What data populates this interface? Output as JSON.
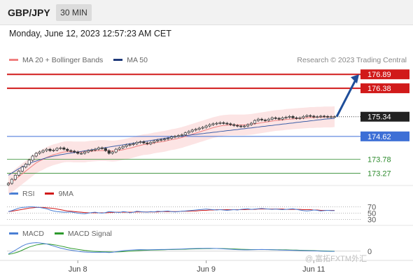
{
  "header": {
    "symbol": "GBP/JPY",
    "timeframe": "30 MIN",
    "datetime": "Monday, June 12, 2023 12:57:23 AM CET"
  },
  "legend": {
    "main": [
      {
        "label": "MA 20 + Bollinger Bands",
        "color": "#f08080"
      },
      {
        "label": "MA 50",
        "color": "#1f3a7a"
      }
    ],
    "credit": "Research © 2023 Trading Central",
    "rsi": [
      {
        "label": "RSI",
        "color": "#4a7fd4"
      },
      {
        "label": "9MA",
        "color": "#d11a1a"
      }
    ],
    "macd": [
      {
        "label": "MACD",
        "color": "#4a7fd4"
      },
      {
        "label": "MACD Signal",
        "color": "#2e9a2e"
      }
    ]
  },
  "watermark": "@ 富拓FXTM外汇",
  "chart_data": {
    "type": "line",
    "price_range": [
      172.9,
      177.1
    ],
    "levels": [
      {
        "label": "176.89",
        "value": 176.89,
        "kind": "resistance",
        "color": "#d11a1a"
      },
      {
        "label": "176.38",
        "value": 176.38,
        "kind": "resistance",
        "color": "#d11a1a"
      },
      {
        "label": "175.34",
        "value": 175.34,
        "kind": "last",
        "color": "#222222"
      },
      {
        "label": "174.62",
        "value": 174.62,
        "kind": "pivot",
        "color": "#3d6fd6"
      },
      {
        "label": "173.78",
        "value": 173.78,
        "kind": "support",
        "color": "#2e8b2e"
      },
      {
        "label": "173.27",
        "value": 173.27,
        "kind": "support",
        "color": "#2e8b2e"
      }
    ],
    "x_ticks": [
      "Jun 8",
      "Jun 9",
      "Jun 11"
    ],
    "x_tick_index": [
      20,
      57,
      88
    ],
    "bar_count": 95,
    "close": [
      172.9,
      173.05,
      173.2,
      173.35,
      173.5,
      173.6,
      173.75,
      173.9,
      174.0,
      174.05,
      174.1,
      174.15,
      174.1,
      174.12,
      174.18,
      174.2,
      174.15,
      174.1,
      174.08,
      174.05,
      174.0,
      174.0,
      174.05,
      174.1,
      174.12,
      174.15,
      174.2,
      174.18,
      174.1,
      174.0,
      174.05,
      174.15,
      174.2,
      174.25,
      174.3,
      174.32,
      174.35,
      174.4,
      174.42,
      174.38,
      174.35,
      174.4,
      174.45,
      174.48,
      174.5,
      174.52,
      174.55,
      174.6,
      174.62,
      174.65,
      174.68,
      174.75,
      174.8,
      174.85,
      174.88,
      174.92,
      174.95,
      175.0,
      175.05,
      175.08,
      175.1,
      175.12,
      175.1,
      175.08,
      175.05,
      175.02,
      175.0,
      174.98,
      175.0,
      175.05,
      175.1,
      175.2,
      175.25,
      175.22,
      175.2,
      175.25,
      175.3,
      175.28,
      175.25,
      175.3,
      175.32,
      175.35,
      175.3,
      175.28,
      175.3,
      175.35,
      175.38,
      175.36,
      175.33,
      175.34,
      175.36,
      175.35,
      175.33,
      175.34,
      175.34
    ],
    "ma20": [
      172.9,
      172.95,
      173.05,
      173.15,
      173.25,
      173.35,
      173.45,
      173.55,
      173.65,
      173.72,
      173.78,
      173.85,
      173.9,
      173.95,
      173.98,
      174.02,
      174.05,
      174.06,
      174.06,
      174.05,
      174.05,
      174.05,
      174.05,
      174.07,
      174.08,
      174.09,
      174.1,
      174.1,
      174.1,
      174.09,
      174.08,
      174.09,
      174.11,
      174.13,
      174.16,
      174.19,
      174.22,
      174.26,
      174.29,
      174.32,
      174.33,
      174.35,
      174.38,
      174.4,
      174.42,
      174.44,
      174.47,
      174.5,
      174.52,
      174.55,
      174.58,
      174.62,
      174.66,
      174.7,
      174.74,
      174.78,
      174.82,
      174.86,
      174.9,
      174.94,
      174.97,
      175.0,
      175.02,
      175.03,
      175.04,
      175.04,
      175.04,
      175.04,
      175.04,
      175.05,
      175.06,
      175.08,
      175.1,
      175.12,
      175.14,
      175.16,
      175.18,
      175.2,
      175.21,
      175.22,
      175.24,
      175.25,
      175.26,
      175.27,
      175.28,
      175.29,
      175.3,
      175.31,
      175.31,
      175.32,
      175.32,
      175.33,
      175.33,
      175.33,
      175.34
    ],
    "ma50": [
      173.2,
      173.28,
      173.36,
      173.44,
      173.5,
      173.56,
      173.62,
      173.68,
      173.72,
      173.76,
      173.8,
      173.84,
      173.87,
      173.9,
      173.92,
      173.95,
      173.97,
      173.99,
      174.01,
      174.03,
      174.05,
      174.07,
      174.09,
      174.11,
      174.13,
      174.15,
      174.17,
      174.19,
      174.21,
      174.23,
      174.25,
      174.27,
      174.29,
      174.31,
      174.33,
      174.35,
      174.37,
      174.39,
      174.41,
      174.43,
      174.45,
      174.47,
      174.49,
      174.51,
      174.53,
      174.55,
      174.57,
      174.59,
      174.6,
      174.62,
      174.63,
      174.65,
      174.66,
      174.68,
      174.69,
      174.71,
      174.72,
      174.74,
      174.75,
      174.77,
      174.78,
      174.8,
      174.81,
      174.83,
      174.84,
      174.86,
      174.87,
      174.89,
      174.9,
      174.92,
      174.93,
      174.95,
      174.96,
      174.98,
      174.99,
      175.01,
      175.02,
      175.04,
      175.05,
      175.07,
      175.08,
      175.1,
      175.11,
      175.13,
      175.14,
      175.16,
      175.17,
      175.19,
      175.2,
      175.22,
      175.23,
      175.25,
      175.26,
      175.27,
      175.28
    ],
    "forecast_arrow": {
      "from": 175.34,
      "to": 176.89
    },
    "rsi": {
      "levels": [
        70,
        50,
        30
      ],
      "range": [
        20,
        80
      ],
      "rsi": [
        55,
        58,
        62,
        66,
        68,
        69,
        70,
        70,
        69,
        68,
        66,
        64,
        60,
        57,
        55,
        54,
        53,
        53,
        54,
        52,
        50,
        49,
        48,
        50,
        52,
        53,
        51,
        50,
        52,
        55,
        54,
        53,
        52,
        55,
        54,
        51,
        53,
        56,
        55,
        54,
        53,
        55,
        54,
        56,
        55,
        56,
        57,
        55,
        54,
        55,
        56,
        57,
        58,
        59,
        60,
        61,
        62,
        63,
        62,
        61,
        60,
        61,
        60,
        59,
        60,
        61,
        60,
        62,
        63,
        64,
        62,
        63,
        64,
        65,
        64,
        63,
        62,
        63,
        62,
        61,
        62,
        63,
        64,
        62,
        60,
        58,
        57,
        58,
        60,
        59,
        57,
        58,
        59,
        58,
        58
      ],
      "ma9": [
        55,
        56,
        58,
        60,
        62,
        64,
        66,
        67,
        68,
        68,
        68,
        67,
        66,
        65,
        63,
        61,
        59,
        57,
        56,
        55,
        54,
        53,
        52,
        51,
        51,
        51,
        51,
        51,
        51,
        52,
        52,
        53,
        53,
        53,
        53,
        53,
        53,
        54,
        54,
        54,
        54,
        54,
        54,
        54,
        55,
        55,
        55,
        55,
        55,
        55,
        56,
        56,
        56,
        57,
        57,
        58,
        59,
        59,
        60,
        60,
        61,
        61,
        61,
        61,
        61,
        61,
        61,
        61,
        61,
        62,
        62,
        62,
        63,
        63,
        63,
        63,
        63,
        63,
        63,
        63,
        62,
        62,
        62,
        62,
        62,
        61,
        61,
        61,
        60,
        60,
        59,
        59,
        59,
        59,
        59
      ]
    },
    "macd": {
      "level": 0,
      "range": [
        -0.15,
        0.2
      ],
      "macd": [
        -0.05,
        -0.02,
        0.02,
        0.06,
        0.1,
        0.13,
        0.15,
        0.16,
        0.165,
        0.16,
        0.15,
        0.14,
        0.12,
        0.1,
        0.08,
        0.06,
        0.045,
        0.03,
        0.02,
        0.01,
        0.0,
        -0.01,
        -0.015,
        -0.018,
        -0.02,
        -0.02,
        -0.02,
        -0.018,
        -0.02,
        -0.025,
        -0.02,
        -0.01,
        0.0,
        0.01,
        0.015,
        0.02,
        0.025,
        0.028,
        0.03,
        0.028,
        0.026,
        0.028,
        0.03,
        0.032,
        0.033,
        0.034,
        0.035,
        0.036,
        0.038,
        0.04,
        0.042,
        0.045,
        0.048,
        0.05,
        0.052,
        0.053,
        0.054,
        0.055,
        0.055,
        0.054,
        0.052,
        0.05,
        0.046,
        0.042,
        0.038,
        0.034,
        0.03,
        0.028,
        0.026,
        0.026,
        0.028,
        0.03,
        0.032,
        0.033,
        0.032,
        0.03,
        0.028,
        0.026,
        0.024,
        0.022,
        0.02,
        0.018,
        0.016,
        0.015,
        0.014,
        0.012,
        0.01,
        0.008,
        0.006,
        0.004,
        0.002,
        0.0,
        -0.002,
        -0.003,
        -0.004
      ],
      "signal": [
        -0.06,
        -0.05,
        -0.03,
        -0.01,
        0.02,
        0.05,
        0.08,
        0.1,
        0.12,
        0.13,
        0.14,
        0.14,
        0.135,
        0.125,
        0.115,
        0.1,
        0.085,
        0.07,
        0.055,
        0.045,
        0.035,
        0.025,
        0.015,
        0.008,
        0.002,
        -0.003,
        -0.007,
        -0.01,
        -0.012,
        -0.014,
        -0.015,
        -0.014,
        -0.012,
        -0.008,
        -0.004,
        0.0,
        0.005,
        0.01,
        0.014,
        0.017,
        0.019,
        0.021,
        0.023,
        0.025,
        0.027,
        0.029,
        0.031,
        0.032,
        0.034,
        0.035,
        0.037,
        0.039,
        0.041,
        0.043,
        0.045,
        0.047,
        0.049,
        0.05,
        0.051,
        0.052,
        0.052,
        0.051,
        0.05,
        0.048,
        0.046,
        0.043,
        0.04,
        0.037,
        0.035,
        0.033,
        0.032,
        0.031,
        0.031,
        0.031,
        0.031,
        0.031,
        0.03,
        0.029,
        0.028,
        0.027,
        0.026,
        0.024,
        0.022,
        0.021,
        0.019,
        0.017,
        0.015,
        0.013,
        0.011,
        0.009,
        0.007,
        0.005,
        0.003,
        0.001,
        0.0
      ]
    }
  }
}
